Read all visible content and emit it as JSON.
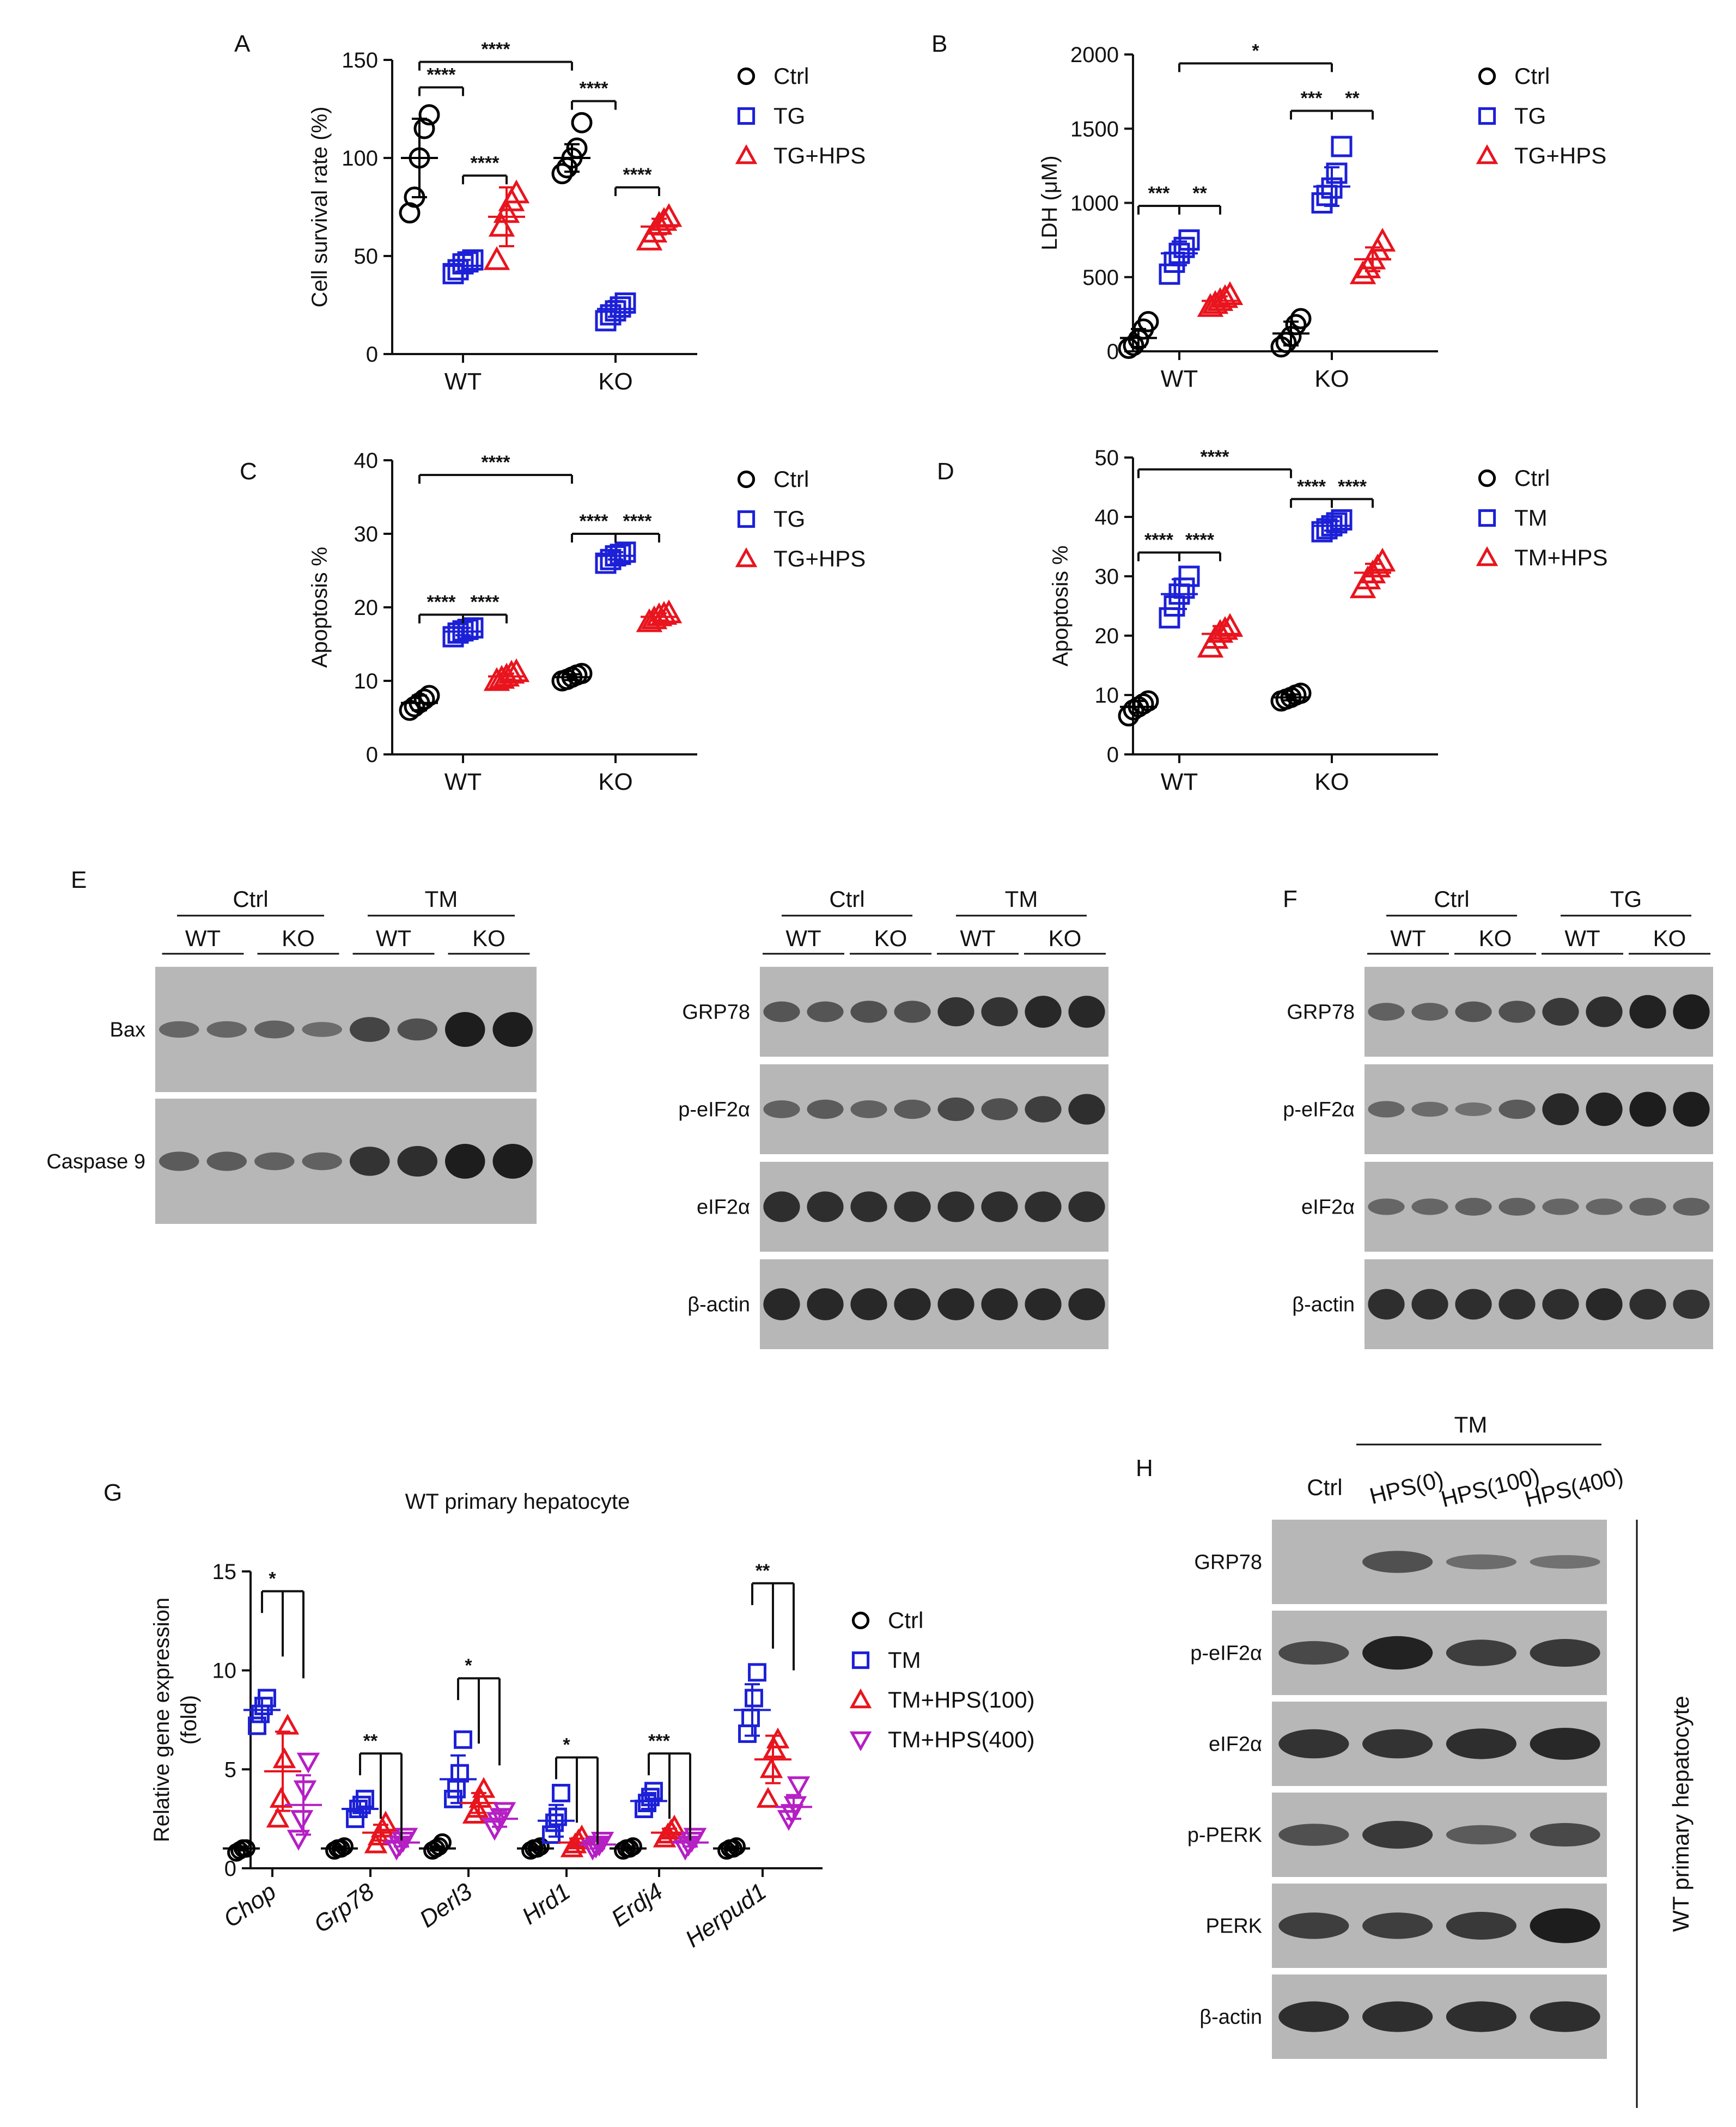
{
  "colors": {
    "ctrl": "#000000",
    "tg": "#1c20d6",
    "hps": "#e8141e",
    "hps400": "#b51fc4",
    "blot_bg": "#b7b7b7",
    "band": "#141414"
  },
  "chart_data": [
    {
      "id": "A",
      "type": "scatter",
      "categories": [
        "WT",
        "KO"
      ],
      "ylabel": "Cell survival rate (%)",
      "ylim": [
        0,
        150
      ],
      "yticks": [
        0,
        50,
        100,
        150
      ],
      "legend": [
        "Ctrl",
        "TG",
        "TG+HPS"
      ],
      "series": [
        {
          "name": "Ctrl",
          "marker": "circle",
          "color": "#000000",
          "points": [
            [
              72,
              80,
              100,
              115,
              122
            ],
            [
              92,
              95,
              100,
              105,
              118
            ]
          ],
          "mean": [
            100,
            100
          ],
          "sd": [
            20,
            7
          ]
        },
        {
          "name": "TG",
          "marker": "square",
          "color": "#1c20d6",
          "points": [
            [
              41,
              43,
              46,
              47,
              48
            ],
            [
              17,
              20,
              22,
              24,
              26
            ]
          ],
          "mean": [
            45,
            23
          ],
          "sd": [
            3,
            4
          ]
        },
        {
          "name": "TG+HPS",
          "marker": "triangle",
          "color": "#e8141e",
          "points": [
            [
              48,
              65,
              72,
              78,
              82
            ],
            [
              58,
              62,
              66,
              68,
              70
            ]
          ],
          "mean": [
            70,
            65
          ],
          "sd": [
            15,
            4
          ]
        }
      ],
      "annotations": [
        {
          "text": "****",
          "group": 0,
          "from": 0,
          "to": 1,
          "y": 136
        },
        {
          "text": "****",
          "group": 0,
          "from": 1,
          "to": 2,
          "y": 91
        },
        {
          "text": "****",
          "group": 1,
          "from": 0,
          "to": 1,
          "y": 129
        },
        {
          "text": "****",
          "group": 1,
          "from": 1,
          "to": 2,
          "y": 85
        },
        {
          "text": "****",
          "group": "across",
          "from": 0,
          "to": 0,
          "y": 149
        }
      ]
    },
    {
      "id": "B",
      "type": "scatter",
      "categories": [
        "WT",
        "KO"
      ],
      "ylabel": "LDH (μM)",
      "ylim": [
        0,
        2000
      ],
      "yticks": [
        0,
        500,
        1000,
        1500,
        2000
      ],
      "legend": [
        "Ctrl",
        "TG",
        "TG+HPS"
      ],
      "series": [
        {
          "name": "Ctrl",
          "marker": "circle",
          "color": "#000000",
          "points": [
            [
              20,
              40,
              80,
              150,
              200
            ],
            [
              30,
              60,
              100,
              180,
              220
            ]
          ],
          "mean": [
            90,
            120
          ],
          "sd": [
            60,
            80
          ]
        },
        {
          "name": "TG",
          "marker": "square",
          "color": "#1c20d6",
          "points": [
            [
              520,
              600,
              660,
              700,
              750
            ],
            [
              1000,
              1050,
              1100,
              1200,
              1380
            ]
          ],
          "mean": [
            660,
            1110
          ],
          "sd": [
            80,
            130
          ]
        },
        {
          "name": "TG+HPS",
          "marker": "triangle",
          "color": "#e8141e",
          "points": [
            [
              300,
              320,
              340,
              360,
              380
            ],
            [
              520,
              560,
              620,
              680,
              740
            ]
          ],
          "mean": [
            340,
            620
          ],
          "sd": [
            30,
            80
          ]
        }
      ],
      "annotations": [
        {
          "text": "***",
          "group": 0,
          "from": 0,
          "to": 1,
          "y": 980
        },
        {
          "text": "**",
          "group": 0,
          "from": 1,
          "to": 2,
          "y": 980
        },
        {
          "text": "***",
          "group": 1,
          "from": 0,
          "to": 1,
          "y": 1620
        },
        {
          "text": "**",
          "group": 1,
          "from": 1,
          "to": 2,
          "y": 1620
        },
        {
          "text": "*",
          "group": "across",
          "from": 1,
          "to": 1,
          "y": 1940
        }
      ]
    },
    {
      "id": "C",
      "type": "scatter",
      "categories": [
        "WT",
        "KO"
      ],
      "ylabel": "Apoptosis %",
      "ylim": [
        0,
        40
      ],
      "yticks": [
        0,
        10,
        20,
        30,
        40
      ],
      "legend": [
        "Ctrl",
        "TG",
        "TG+HPS"
      ],
      "series": [
        {
          "name": "Ctrl",
          "marker": "circle",
          "color": "#000000",
          "points": [
            [
              6,
              6.5,
              7,
              7.5,
              8
            ],
            [
              10,
              10.2,
              10.5,
              10.8,
              11
            ]
          ],
          "mean": [
            7,
            10.5
          ],
          "sd": [
            1,
            0.4
          ]
        },
        {
          "name": "TG",
          "marker": "square",
          "color": "#1c20d6",
          "points": [
            [
              16,
              16.5,
              16.8,
              17,
              17.2
            ],
            [
              26,
              26.5,
              27,
              27.2,
              27.5
            ]
          ],
          "mean": [
            16.7,
            27
          ],
          "sd": [
            0.5,
            0.5
          ]
        },
        {
          "name": "TG+HPS",
          "marker": "triangle",
          "color": "#e8141e",
          "points": [
            [
              10,
              10.3,
              10.6,
              11,
              11.2
            ],
            [
              18,
              18.4,
              18.8,
              19,
              19.2
            ]
          ],
          "mean": [
            10.6,
            18.7
          ],
          "sd": [
            0.4,
            0.5
          ]
        }
      ],
      "annotations": [
        {
          "text": "****",
          "group": 0,
          "from": 0,
          "to": 1,
          "y": 19
        },
        {
          "text": "****",
          "group": 0,
          "from": 1,
          "to": 2,
          "y": 19
        },
        {
          "text": "****",
          "group": 1,
          "from": 0,
          "to": 1,
          "y": 30
        },
        {
          "text": "****",
          "group": 1,
          "from": 1,
          "to": 2,
          "y": 30
        },
        {
          "text": "****",
          "group": "across",
          "from": 0,
          "to": 0,
          "y": 38
        }
      ]
    },
    {
      "id": "D",
      "type": "scatter",
      "categories": [
        "WT",
        "KO"
      ],
      "ylabel": "Apoptosis %",
      "ylim": [
        0,
        50
      ],
      "yticks": [
        0,
        10,
        20,
        30,
        40,
        50
      ],
      "legend": [
        "Ctrl",
        "TM",
        "TM+HPS"
      ],
      "series": [
        {
          "name": "Ctrl",
          "marker": "circle",
          "color": "#000000",
          "points": [
            [
              6.5,
              7.5,
              8,
              8.5,
              9
            ],
            [
              9,
              9.3,
              9.6,
              10,
              10.3
            ]
          ],
          "mean": [
            8,
            9.6
          ],
          "sd": [
            1,
            0.5
          ]
        },
        {
          "name": "TM",
          "marker": "square",
          "color": "#1c20d6",
          "points": [
            [
              23,
              25,
              27,
              28,
              30
            ],
            [
              37.5,
              38,
              38.5,
              39,
              39.5
            ]
          ],
          "mean": [
            27,
            38.5
          ],
          "sd": [
            2.5,
            0.8
          ]
        },
        {
          "name": "TM+HPS",
          "marker": "triangle",
          "color": "#e8141e",
          "points": [
            [
              18,
              19.5,
              20.5,
              21,
              21.5
            ],
            [
              28,
              29.5,
              30.5,
              31.5,
              32.5
            ]
          ],
          "mean": [
            20.3,
            30.6
          ],
          "sd": [
            1.3,
            1.5
          ]
        }
      ],
      "annotations": [
        {
          "text": "****",
          "group": 0,
          "from": 0,
          "to": 1,
          "y": 34
        },
        {
          "text": "****",
          "group": 0,
          "from": 1,
          "to": 2,
          "y": 34
        },
        {
          "text": "****",
          "group": 1,
          "from": 0,
          "to": 1,
          "y": 43
        },
        {
          "text": "****",
          "group": 1,
          "from": 1,
          "to": 2,
          "y": 43
        },
        {
          "text": "****",
          "group": "across",
          "from": 0,
          "to": 0,
          "y": 48
        }
      ]
    },
    {
      "id": "G",
      "type": "scatter",
      "title": "WT primary hepatocyte",
      "categories": [
        "Chop",
        "Grp78",
        "Derl3",
        "Hrd1",
        "Erdj4",
        "Herpud1"
      ],
      "ylabel": "Relative gene expression",
      "ylabel2": "(fold)",
      "ylim": [
        0,
        15
      ],
      "yticks": [
        0,
        5,
        10,
        15
      ],
      "legend": [
        "Ctrl",
        "TM",
        "TM+HPS(100)",
        "TM+HPS(400)"
      ],
      "series": [
        {
          "name": "Ctrl",
          "marker": "circle",
          "color": "#000000",
          "points": [
            [
              0.8,
              0.9,
              1,
              1
            ],
            [
              0.9,
              1,
              1,
              1.1
            ],
            [
              0.9,
              1,
              1.1,
              1.3
            ],
            [
              0.9,
              1,
              1,
              1.1
            ],
            [
              0.9,
              1,
              1,
              1.1
            ],
            [
              0.9,
              1,
              1,
              1.1
            ]
          ],
          "mean": [
            1,
            1,
            1,
            1,
            1,
            1
          ],
          "sd": [
            0.1,
            0.1,
            0.1,
            0.1,
            0.1,
            0.1
          ]
        },
        {
          "name": "TM",
          "marker": "square",
          "color": "#1c20d6",
          "points": [
            [
              7.2,
              7.8,
              8.2,
              8.6
            ],
            [
              2.5,
              3,
              3.2,
              3.5
            ],
            [
              3.5,
              4,
              4.8,
              6.5
            ],
            [
              1.7,
              2.3,
              2.6,
              3.8
            ],
            [
              3,
              3.3,
              3.6,
              3.9
            ],
            [
              6.8,
              7.6,
              8.6,
              9.9
            ]
          ],
          "mean": [
            8,
            3,
            4.5,
            2.4,
            3.4,
            8
          ],
          "sd": [
            0.6,
            0.4,
            1.2,
            0.8,
            0.4,
            1.3
          ]
        },
        {
          "name": "TM+HPS(100)",
          "marker": "triangle",
          "color": "#e8141e",
          "points": [
            [
              2.5,
              3.5,
              5.5,
              7.2
            ],
            [
              1.2,
              1.6,
              2,
              2.3
            ],
            [
              2.7,
              3,
              3.5,
              4
            ],
            [
              1,
              1.2,
              1.4,
              1.6
            ],
            [
              1.5,
              1.7,
              1.9,
              2.1
            ],
            [
              3.5,
              5,
              6,
              6.5
            ]
          ],
          "mean": [
            4.9,
            1.8,
            3.3,
            1.3,
            1.8,
            5.5
          ],
          "sd": [
            2,
            0.4,
            0.5,
            0.2,
            0.2,
            1.2
          ]
        },
        {
          "name": "TM+HPS(400)",
          "marker": "triangle-down",
          "color": "#b51fc4",
          "points": [
            [
              1.5,
              2.5,
              4,
              5.4
            ],
            [
              1,
              1.2,
              1.4,
              1.6
            ],
            [
              2,
              2.4,
              2.6,
              2.9
            ],
            [
              1,
              1.1,
              1.2,
              1.4
            ],
            [
              1,
              1.2,
              1.4,
              1.6
            ],
            [
              2.5,
              2.8,
              3.2,
              4.2
            ]
          ],
          "mean": [
            3.2,
            1.3,
            2.5,
            1.2,
            1.3,
            3.1
          ],
          "sd": [
            1.5,
            0.2,
            0.4,
            0.2,
            0.2,
            0.6
          ]
        }
      ],
      "annotations": [
        {
          "text": "*",
          "group": 0,
          "top": 14
        },
        {
          "text": "**",
          "group": 1,
          "top": 5.8
        },
        {
          "text": "*",
          "group": 2,
          "top": 9.6
        },
        {
          "text": "*",
          "group": 3,
          "top": 5.6
        },
        {
          "text": "***",
          "group": 4,
          "top": 5.8
        },
        {
          "text": "**",
          "group": 5,
          "top": 14.4
        }
      ]
    }
  ],
  "panel_labels": [
    "A",
    "B",
    "C",
    "D",
    "E",
    "F",
    "G",
    "H"
  ],
  "blots": {
    "E_left": {
      "groups": [
        "Ctrl",
        "TM"
      ],
      "sub": [
        "WT",
        "KO",
        "WT",
        "KO"
      ],
      "rows": [
        "Bax",
        "Caspase 9"
      ],
      "intensity": [
        [
          0.35,
          0.35,
          0.4,
          0.3,
          0.65,
          0.55,
          1,
          1
        ],
        [
          0.45,
          0.45,
          0.4,
          0.4,
          0.8,
          0.85,
          1,
          1
        ]
      ]
    },
    "E_right": {
      "groups": [
        "Ctrl",
        "TM"
      ],
      "sub": [
        "WT",
        "KO",
        "WT",
        "KO"
      ],
      "rows": [
        "GRP78",
        "p-eIF2α",
        "eIF2α",
        "β-actin"
      ],
      "intensity": [
        [
          0.5,
          0.5,
          0.55,
          0.55,
          0.8,
          0.8,
          0.9,
          0.9
        ],
        [
          0.4,
          0.45,
          0.4,
          0.45,
          0.6,
          0.55,
          0.7,
          0.85
        ],
        [
          0.85,
          0.85,
          0.85,
          0.85,
          0.85,
          0.85,
          0.85,
          0.85
        ],
        [
          0.9,
          0.9,
          0.9,
          0.9,
          0.9,
          0.9,
          0.9,
          0.9
        ]
      ]
    },
    "F": {
      "groups": [
        "Ctrl",
        "TG"
      ],
      "sub": [
        "WT",
        "KO",
        "WT",
        "KO"
      ],
      "rows": [
        "GRP78",
        "p-eIF2α",
        "eIF2α",
        "β-actin"
      ],
      "intensity": [
        [
          0.4,
          0.4,
          0.5,
          0.55,
          0.75,
          0.85,
          0.95,
          1
        ],
        [
          0.35,
          0.3,
          0.25,
          0.45,
          0.9,
          0.95,
          1,
          1
        ],
        [
          0.35,
          0.35,
          0.4,
          0.4,
          0.35,
          0.35,
          0.4,
          0.4
        ],
        [
          0.85,
          0.85,
          0.85,
          0.85,
          0.85,
          0.9,
          0.85,
          0.8
        ]
      ]
    },
    "H": {
      "top_label": "TM",
      "columns": [
        "Ctrl",
        "HPS(0)",
        "HPS(100)",
        "HPS(400)"
      ],
      "rows": [
        "GRP78",
        "p-eIF2α",
        "eIF2α",
        "p-PERK",
        "PERK",
        "β-actin"
      ],
      "side_label": "WT primary hepatocyte",
      "intensity": [
        [
          0,
          0.55,
          0.3,
          0.25
        ],
        [
          0.6,
          0.95,
          0.7,
          0.75
        ],
        [
          0.8,
          0.8,
          0.85,
          0.9
        ],
        [
          0.55,
          0.75,
          0.45,
          0.6
        ],
        [
          0.7,
          0.7,
          0.75,
          1
        ],
        [
          0.85,
          0.85,
          0.85,
          0.85
        ]
      ]
    }
  }
}
